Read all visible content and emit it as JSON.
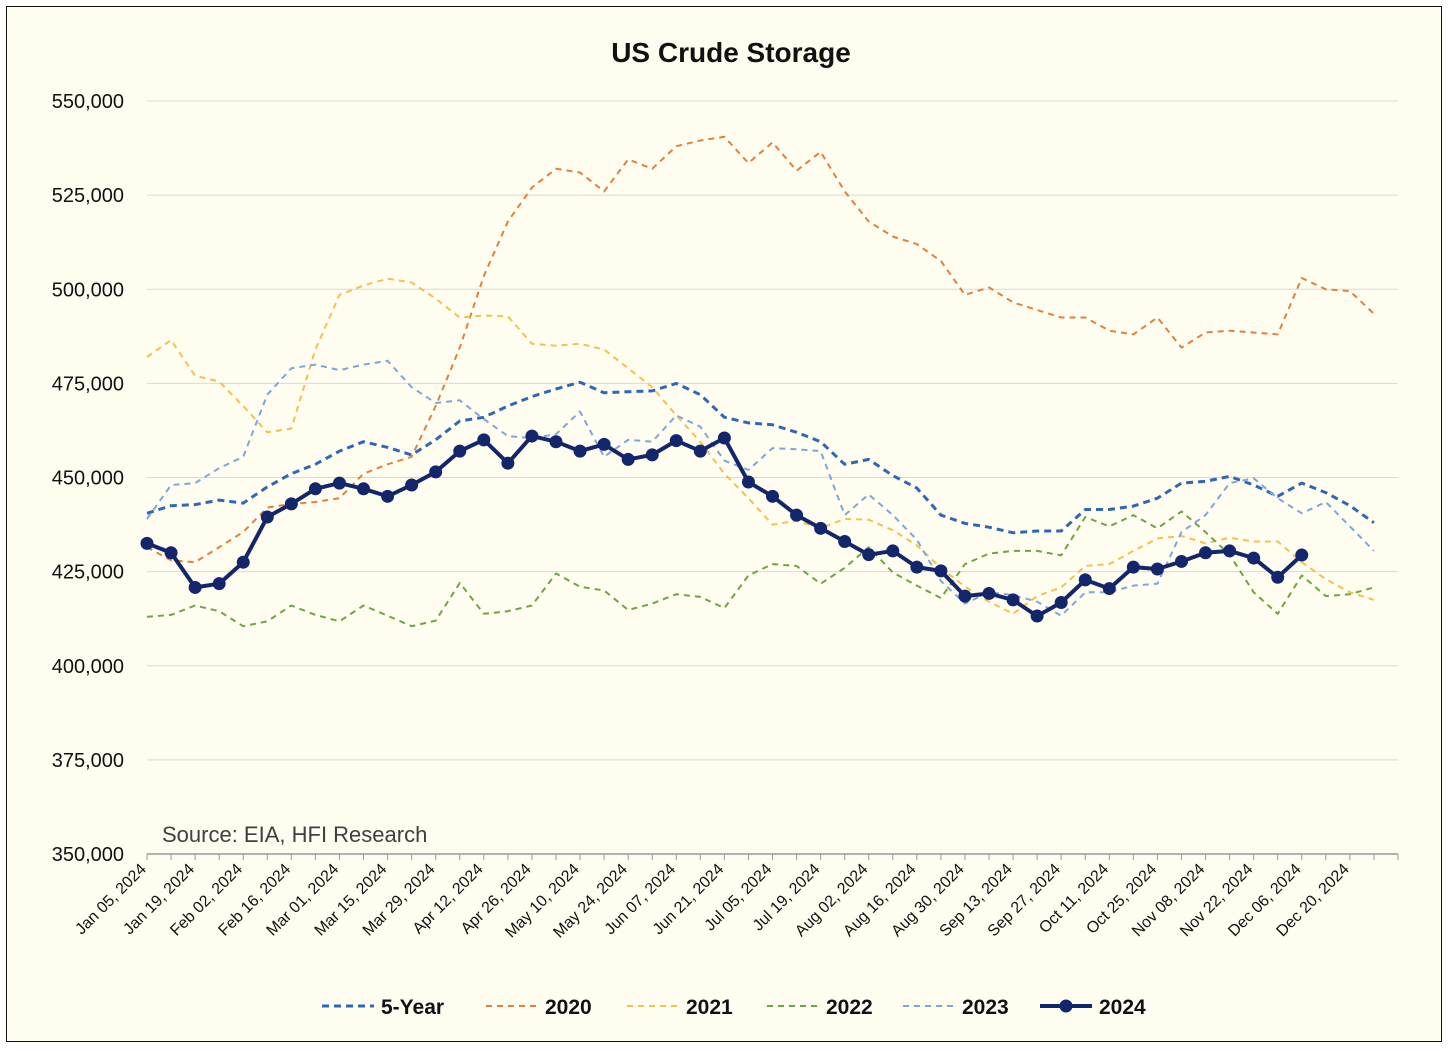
{
  "chart_data": {
    "type": "line",
    "title": "US Crude Storage",
    "note": "Source: EIA, HFI Research",
    "xlabel": "",
    "ylabel": "",
    "ylim": [
      350000,
      550000
    ],
    "y_ticks": [
      "350,000",
      "375,000",
      "400,000",
      "425,000",
      "450,000",
      "475,000",
      "500,000",
      "525,000",
      "550,000"
    ],
    "y_tick_values": [
      350000,
      375000,
      400000,
      425000,
      450000,
      475000,
      500000,
      525000,
      550000
    ],
    "x_tick_labels": [
      "Jan 05, 2024",
      "Jan 19, 2024",
      "Feb 02, 2024",
      "Feb 16, 2024",
      "Mar 01, 2024",
      "Mar 15, 2024",
      "Mar 29, 2024",
      "Apr 12, 2024",
      "Apr 26, 2024",
      "May 10, 2024",
      "May 24, 2024",
      "Jun 07, 2024",
      "Jun 21, 2024",
      "Jul 05, 2024",
      "Jul 19, 2024",
      "Aug 02, 2024",
      "Aug 16, 2024",
      "Aug 30, 2024",
      "Sep 13, 2024",
      "Sep 27, 2024",
      "Oct 11, 2024",
      "Oct 25, 2024",
      "Nov 08, 2024",
      "Nov 22, 2024",
      "Dec 06, 2024",
      "Dec 20, 2024"
    ],
    "weeks": 52,
    "grid": true,
    "legend_position": "bottom",
    "series": [
      {
        "name": "5-Year",
        "color": "#2e67b8",
        "style": "dashed",
        "width": 3,
        "markers": false,
        "values": [
          440500,
          442500,
          442800,
          444000,
          443200,
          447500,
          451000,
          453500,
          457000,
          459500,
          458000,
          456000,
          460000,
          465000,
          466000,
          469000,
          471500,
          473500,
          475300,
          472500,
          472800,
          473000,
          475000,
          472000,
          466000,
          464500,
          464000,
          462000,
          459500,
          453500,
          454800,
          450500,
          447200,
          440000,
          437800,
          436800,
          435300,
          435800,
          435800,
          441500,
          441500,
          442400,
          444500,
          448500,
          449000,
          450300,
          448000,
          445000,
          448500,
          446000,
          442500,
          438000
        ]
      },
      {
        "name": "2020",
        "color": "#e0813c",
        "style": "dashed",
        "width": 2,
        "markers": false,
        "values": [
          431500,
          428000,
          427500,
          431500,
          435500,
          442000,
          443000,
          443500,
          444500,
          451000,
          453500,
          455500,
          469000,
          484500,
          503500,
          518000,
          527000,
          532000,
          531000,
          526000,
          534500,
          532000,
          538000,
          539500,
          540500,
          533500,
          539000,
          531500,
          536500,
          526000,
          518000,
          514000,
          512000,
          507500,
          498500,
          500500,
          496500,
          494500,
          492500,
          492500,
          489000,
          488000,
          492500,
          484500,
          488500,
          489000,
          488500,
          488000,
          503000,
          500000,
          499500,
          493500
        ]
      },
      {
        "name": "2021",
        "color": "#f2c14e",
        "style": "dashed",
        "width": 2,
        "markers": false,
        "values": [
          482000,
          486500,
          477000,
          475500,
          469000,
          462000,
          463000,
          484000,
          498500,
          501000,
          502800,
          501800,
          497500,
          492500,
          493000,
          492800,
          485500,
          485000,
          485500,
          484000,
          479000,
          474000,
          466500,
          459500,
          451000,
          444500,
          437500,
          438500,
          436500,
          439000,
          438800,
          436000,
          432000,
          426000,
          421000,
          417000,
          413800,
          418500,
          420800,
          426500,
          427000,
          430500,
          433800,
          434500,
          432500,
          434000,
          433000,
          433000,
          427500,
          423000,
          419500,
          417500
        ]
      },
      {
        "name": "2022",
        "color": "#70a442",
        "style": "dashed",
        "width": 2,
        "markers": false,
        "values": [
          413000,
          413500,
          416000,
          414500,
          410500,
          411800,
          416000,
          413500,
          411800,
          416000,
          413300,
          410500,
          412000,
          422000,
          413800,
          414500,
          416000,
          424500,
          421000,
          420000,
          414800,
          416500,
          419000,
          418300,
          415300,
          424000,
          427000,
          426500,
          421800,
          426000,
          431500,
          424800,
          421300,
          418000,
          427000,
          429800,
          430500,
          430500,
          429300,
          439500,
          437000,
          440000,
          436500,
          441000,
          435500,
          429500,
          419500,
          413800,
          424000,
          418500,
          419000,
          420800
        ]
      },
      {
        "name": "2023",
        "color": "#7fa6d8",
        "style": "dashed",
        "width": 2,
        "markers": false,
        "values": [
          439000,
          448000,
          448500,
          452500,
          455500,
          472000,
          479000,
          480000,
          478500,
          480000,
          481000,
          474000,
          469800,
          470500,
          465500,
          461000,
          460500,
          461500,
          467500,
          455500,
          460000,
          459500,
          466500,
          463500,
          454500,
          452000,
          457800,
          457500,
          457000,
          440000,
          445500,
          440000,
          433500,
          422500,
          416500,
          419500,
          418800,
          417000,
          413300,
          419500,
          419500,
          421300,
          421800,
          435500,
          440000,
          448500,
          449800,
          444500,
          440500,
          443500,
          437000,
          430500
        ]
      },
      {
        "name": "2024",
        "color": "#13266b",
        "style": "solid",
        "width": 4,
        "markers": true,
        "values": [
          432500,
          430000,
          420800,
          421800,
          427500,
          439500,
          443000,
          447000,
          448500,
          447000,
          445000,
          448000,
          451500,
          457000,
          460000,
          453800,
          461000,
          459500,
          457000,
          458800,
          454800,
          456000,
          459800,
          457000,
          460500,
          448800,
          445000,
          440000,
          436500,
          433000,
          429500,
          430500,
          426200,
          425200,
          418500,
          419200,
          417500,
          413200,
          416800,
          422800,
          420500,
          426200,
          425700,
          427700,
          430000,
          430500,
          428600,
          423500,
          429400,
          null,
          null,
          null
        ]
      }
    ]
  }
}
